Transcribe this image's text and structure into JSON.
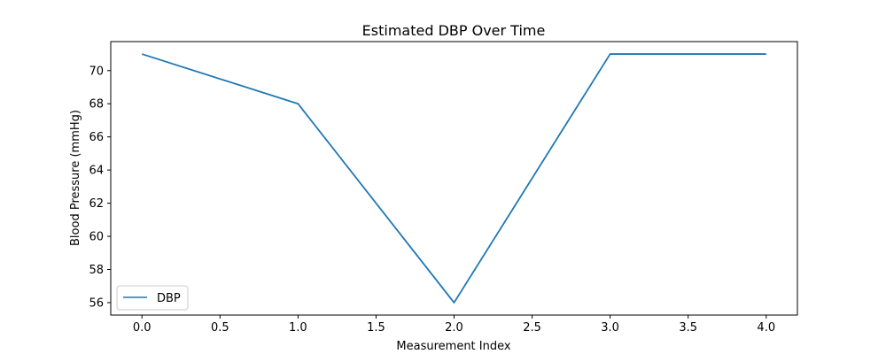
{
  "chart_data": {
    "type": "line",
    "title": "Estimated DBP Over Time",
    "xlabel": "Measurement Index",
    "ylabel": "Blood Pressure (mmHg)",
    "x": [
      0,
      1,
      2,
      3,
      4
    ],
    "series": [
      {
        "name": "DBP",
        "values": [
          71,
          68,
          56,
          71,
          71
        ],
        "color": "#1f77b4"
      }
    ],
    "xlim": [
      -0.2,
      4.2
    ],
    "ylim": [
      55.25,
      71.75
    ],
    "xticks": [
      0.0,
      0.5,
      1.0,
      1.5,
      2.0,
      2.5,
      3.0,
      3.5,
      4.0
    ],
    "xtick_labels": [
      "0.0",
      "0.5",
      "1.0",
      "1.5",
      "2.0",
      "2.5",
      "3.0",
      "3.5",
      "4.0"
    ],
    "yticks": [
      56,
      58,
      60,
      62,
      64,
      66,
      68,
      70
    ],
    "ytick_labels": [
      "56",
      "58",
      "60",
      "62",
      "64",
      "66",
      "68",
      "70"
    ],
    "grid": false,
    "legend_position": "lower-left"
  }
}
